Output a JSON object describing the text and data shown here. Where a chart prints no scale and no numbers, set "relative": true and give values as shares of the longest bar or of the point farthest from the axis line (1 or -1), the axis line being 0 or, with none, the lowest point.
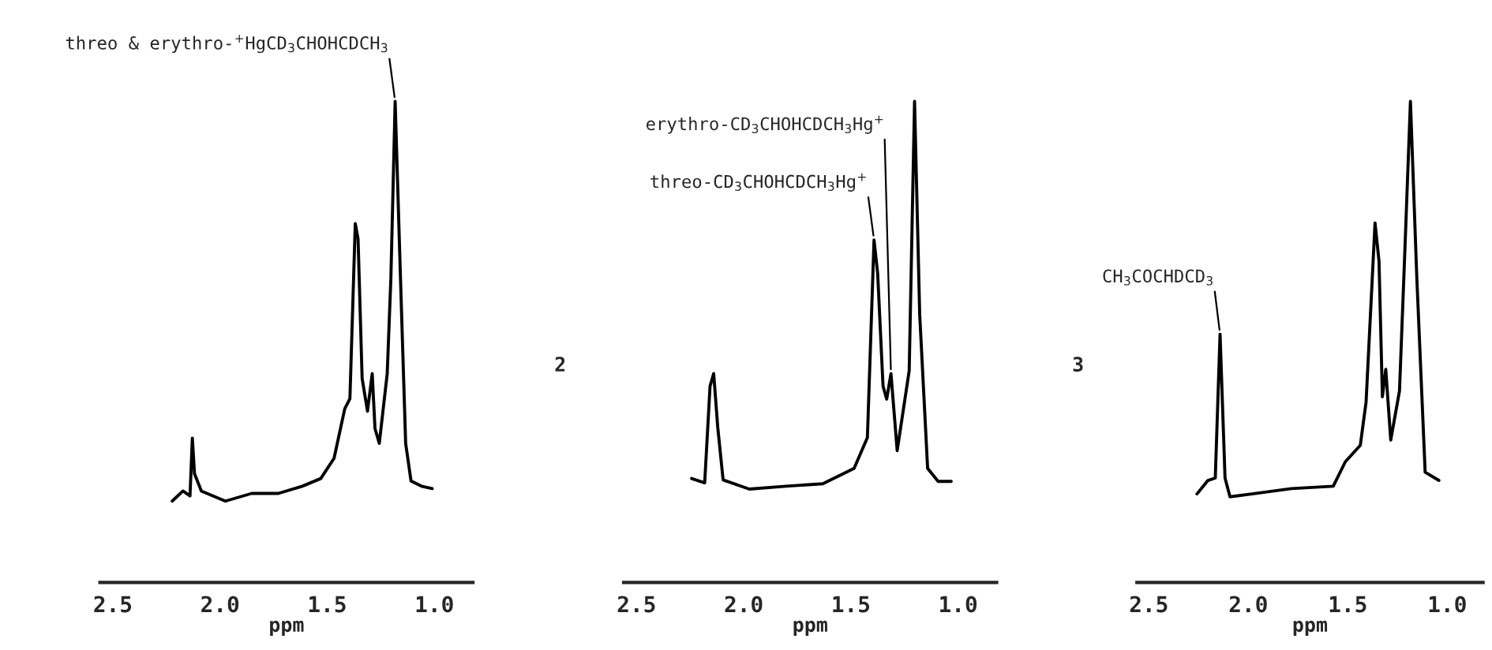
{
  "chart_data": [
    {
      "type": "line",
      "relative": true,
      "xlabel": "ppm",
      "xlim": [
        2.56,
        0.82
      ],
      "xticks": [
        {
          "value": 2.5,
          "label": "2.5"
        },
        {
          "value": 2.0,
          "label": "2.0"
        },
        {
          "value": 1.5,
          "label": "1.5"
        },
        {
          "value": 1.0,
          "label": "1.0"
        }
      ],
      "tick_labels": "x",
      "annotations": [
        {
          "text": "threo & erythro-$^{+}$HgCD$_{3}$CHOHCDCH$_{3}$",
          "x": 1.183,
          "y": 1.0
        }
      ],
      "series": [
        {
          "color": "#000000",
          "x": [
            2.223,
            2.173,
            2.14,
            2.129,
            2.119,
            2.087,
            1.975,
            1.852,
            1.728,
            1.616,
            1.53,
            1.468,
            1.418,
            1.394,
            1.369,
            1.356,
            1.337,
            1.312,
            1.29,
            1.277,
            1.257,
            1.22,
            1.203,
            1.183,
            1.158,
            1.134,
            1.109,
            1.06,
            1.01
          ],
          "values": [
            0.169,
            0.19,
            0.18,
            0.3,
            0.226,
            0.19,
            0.169,
            0.185,
            0.185,
            0.2,
            0.216,
            0.258,
            0.361,
            0.382,
            0.746,
            0.714,
            0.424,
            0.356,
            0.434,
            0.32,
            0.289,
            0.434,
            0.631,
            1.0,
            0.631,
            0.289,
            0.211,
            0.2,
            0.195
          ]
        }
      ]
    },
    {
      "type": "line",
      "relative": true,
      "xlabel": "ppm",
      "xlim": [
        2.56,
        0.82
      ],
      "xticks": [
        {
          "value": 2.5,
          "label": "2.5"
        },
        {
          "value": 2.0,
          "label": "2.0"
        },
        {
          "value": 1.5,
          "label": "1.5"
        },
        {
          "value": 1.0,
          "label": "1.0"
        }
      ],
      "tick_labels": "x",
      "annotations": [
        "2",
        {
          "text": "threo-CD$_{3}$CHOHCDCH$_{3}$Hg$^{+}$",
          "x": 1.392,
          "y": 0.712
        },
        {
          "text": "erythro-CD$_{3}$CHOHCDCH$_{3}$Hg$^{+}$",
          "x": 1.313,
          "y": 0.434
        }
      ],
      "series": [
        {
          "color": "#000000",
          "x": [
            2.243,
            2.182,
            2.157,
            2.14,
            2.121,
            2.096,
            1.974,
            1.803,
            1.631,
            1.485,
            1.423,
            1.392,
            1.375,
            1.35,
            1.333,
            1.313,
            1.284,
            1.228,
            1.203,
            1.179,
            1.142,
            1.093,
            1.032
          ],
          "values": [
            0.216,
            0.207,
            0.408,
            0.434,
            0.322,
            0.213,
            0.194,
            0.2,
            0.205,
            0.237,
            0.301,
            0.712,
            0.642,
            0.408,
            0.381,
            0.434,
            0.274,
            0.44,
            1.0,
            0.557,
            0.237,
            0.21,
            0.21
          ]
        }
      ]
    },
    {
      "type": "line",
      "relative": true,
      "xlabel": "ppm",
      "xlim": [
        2.56,
        0.82
      ],
      "xticks": [
        {
          "value": 2.5,
          "label": "2.5"
        },
        {
          "value": 2.0,
          "label": "2.0"
        },
        {
          "value": 1.5,
          "label": "1.5"
        },
        {
          "value": 1.0,
          "label": "1.0"
        }
      ],
      "tick_labels": "x",
      "annotations": [
        "3",
        {
          "text": "CH$_{3}$COCHDCD$_{3}$",
          "x": 2.142,
          "y": 0.516
        }
      ],
      "series": [
        {
          "color": "#000000",
          "x": [
            2.258,
            2.203,
            2.166,
            2.142,
            2.117,
            2.092,
            1.981,
            1.783,
            1.573,
            1.512,
            1.437,
            1.408,
            1.363,
            1.343,
            1.326,
            1.309,
            1.284,
            1.24,
            1.215,
            1.185,
            1.153,
            1.111,
            1.042
          ],
          "values": [
            0.184,
            0.212,
            0.217,
            0.516,
            0.217,
            0.178,
            0.184,
            0.195,
            0.2,
            0.251,
            0.285,
            0.375,
            0.747,
            0.668,
            0.386,
            0.443,
            0.296,
            0.398,
            0.668,
            1.0,
            0.634,
            0.229,
            0.212
          ]
        }
      ]
    }
  ]
}
